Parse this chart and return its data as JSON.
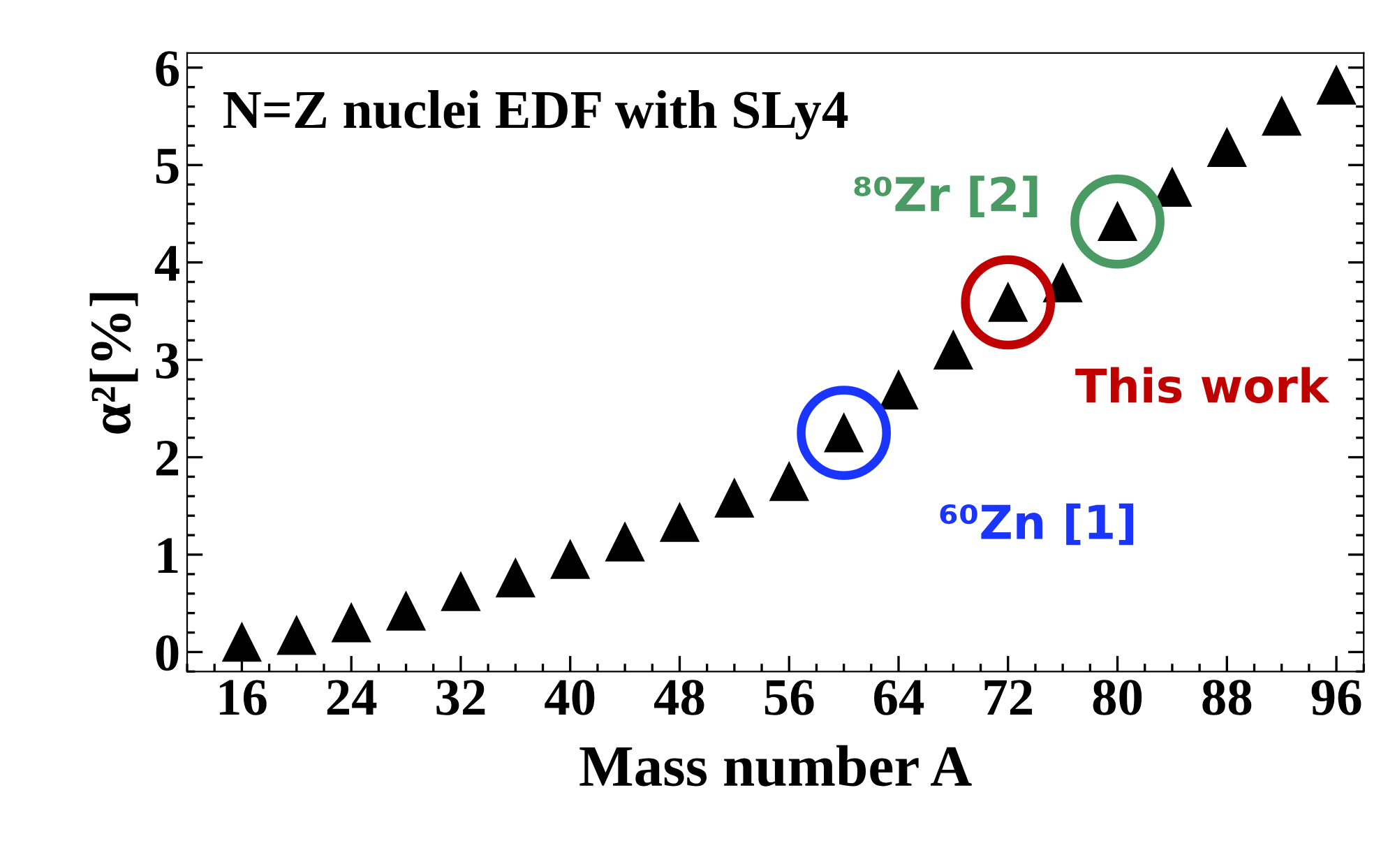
{
  "chart_data": {
    "type": "scatter",
    "title": "N=Z nuclei EDF with SLy4",
    "xlabel": "Mass number A",
    "ylabel": "α²[%]",
    "x": [
      16,
      20,
      24,
      28,
      32,
      36,
      40,
      44,
      48,
      52,
      56,
      60,
      64,
      68,
      72,
      76,
      80,
      84,
      88,
      92,
      96
    ],
    "series": [
      {
        "color": "#000000",
        "values": [
          0.1,
          0.17,
          0.3,
          0.42,
          0.62,
          0.76,
          0.95,
          1.13,
          1.33,
          1.58,
          1.75,
          2.25,
          2.69,
          3.1,
          3.59,
          3.79,
          4.42,
          4.77,
          5.18,
          5.5,
          5.82
        ]
      }
    ],
    "marker": "triangle",
    "grid": false,
    "legend": false,
    "xlim": [
      12,
      98
    ],
    "xticks": [
      16,
      24,
      32,
      40,
      48,
      56,
      64,
      72,
      80,
      88,
      96
    ],
    "ylim": [
      -0.2,
      6.15
    ],
    "yticks": [
      0,
      1,
      2,
      3,
      4,
      5,
      6
    ],
    "annotations": [
      {
        "text": "⁶⁰Zn [1]",
        "x": 60,
        "y": 2.25
      },
      {
        "text": "This work",
        "x": 72,
        "y": 3.59
      },
      {
        "text": "⁸⁰Zr [2]",
        "x": 80,
        "y": 4.42
      }
    ]
  }
}
